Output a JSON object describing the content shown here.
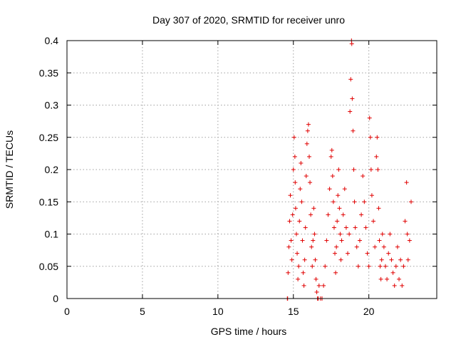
{
  "chart_data": {
    "type": "scatter",
    "title": "Day 307 of 2020, SRMTID for receiver unro",
    "xlabel": "GPS time / hours",
    "ylabel": "SRMTID / TECUs",
    "xlim": [
      0,
      24.5
    ],
    "ylim": [
      0,
      0.4
    ],
    "x_ticks": [
      0,
      5,
      10,
      15,
      20
    ],
    "x_tick_labels": [
      "0",
      "5",
      "10",
      "15",
      "20"
    ],
    "y_ticks": [
      0,
      0.05,
      0.1,
      0.15,
      0.2,
      0.25,
      0.3,
      0.35,
      0.4
    ],
    "y_tick_labels": [
      "0",
      "0.05",
      "0.1",
      "0.15",
      "0.2",
      "0.25",
      "0.3",
      "0.35",
      "0.4"
    ],
    "grid": true,
    "marker": "+",
    "color": "#e00000",
    "series": [
      {
        "name": "SRMTID",
        "points": [
          [
            14.6,
            0.0
          ],
          [
            14.62,
            0.0
          ],
          [
            14.65,
            0.04
          ],
          [
            14.7,
            0.08
          ],
          [
            14.75,
            0.12
          ],
          [
            14.8,
            0.16
          ],
          [
            14.85,
            0.09
          ],
          [
            14.9,
            0.06
          ],
          [
            14.95,
            0.13
          ],
          [
            15.0,
            0.2
          ],
          [
            15.05,
            0.25
          ],
          [
            15.1,
            0.22
          ],
          [
            15.12,
            0.18
          ],
          [
            15.15,
            0.14
          ],
          [
            15.2,
            0.1
          ],
          [
            15.25,
            0.07
          ],
          [
            15.3,
            0.03
          ],
          [
            15.35,
            0.05
          ],
          [
            15.4,
            0.12
          ],
          [
            15.45,
            0.17
          ],
          [
            15.5,
            0.21
          ],
          [
            15.55,
            0.15
          ],
          [
            15.6,
            0.09
          ],
          [
            15.65,
            0.04
          ],
          [
            15.7,
            0.02
          ],
          [
            15.75,
            0.06
          ],
          [
            15.8,
            0.11
          ],
          [
            15.85,
            0.19
          ],
          [
            15.9,
            0.24
          ],
          [
            15.95,
            0.26
          ],
          [
            16.0,
            0.27
          ],
          [
            16.05,
            0.22
          ],
          [
            16.1,
            0.18
          ],
          [
            16.15,
            0.13
          ],
          [
            16.2,
            0.08
          ],
          [
            16.25,
            0.05
          ],
          [
            16.3,
            0.09
          ],
          [
            16.35,
            0.14
          ],
          [
            16.4,
            0.1
          ],
          [
            16.45,
            0.06
          ],
          [
            16.5,
            0.03
          ],
          [
            16.55,
            0.01
          ],
          [
            16.6,
            0.0
          ],
          [
            16.65,
            0.0
          ],
          [
            16.7,
            0.02
          ],
          [
            16.8,
            0.0
          ],
          [
            16.9,
            0.0
          ],
          [
            17.0,
            0.02
          ],
          [
            17.1,
            0.05
          ],
          [
            17.2,
            0.09
          ],
          [
            17.3,
            0.13
          ],
          [
            17.4,
            0.17
          ],
          [
            17.5,
            0.22
          ],
          [
            17.55,
            0.23
          ],
          [
            17.6,
            0.19
          ],
          [
            17.65,
            0.15
          ],
          [
            17.7,
            0.11
          ],
          [
            17.75,
            0.07
          ],
          [
            17.8,
            0.04
          ],
          [
            17.85,
            0.08
          ],
          [
            17.9,
            0.12
          ],
          [
            17.95,
            0.16
          ],
          [
            18.0,
            0.2
          ],
          [
            18.05,
            0.14
          ],
          [
            18.1,
            0.1
          ],
          [
            18.15,
            0.06
          ],
          [
            18.2,
            0.09
          ],
          [
            18.3,
            0.13
          ],
          [
            18.4,
            0.17
          ],
          [
            18.5,
            0.11
          ],
          [
            18.6,
            0.07
          ],
          [
            18.7,
            0.1
          ],
          [
            18.75,
            0.29
          ],
          [
            18.8,
            0.34
          ],
          [
            18.85,
            0.4
          ],
          [
            18.87,
            0.395
          ],
          [
            18.9,
            0.31
          ],
          [
            18.95,
            0.26
          ],
          [
            19.0,
            0.2
          ],
          [
            19.05,
            0.15
          ],
          [
            19.1,
            0.11
          ],
          [
            19.2,
            0.08
          ],
          [
            19.3,
            0.05
          ],
          [
            19.4,
            0.09
          ],
          [
            19.5,
            0.13
          ],
          [
            19.6,
            0.19
          ],
          [
            19.7,
            0.15
          ],
          [
            19.8,
            0.11
          ],
          [
            19.9,
            0.07
          ],
          [
            20.0,
            0.05
          ],
          [
            20.05,
            0.28
          ],
          [
            20.1,
            0.25
          ],
          [
            20.15,
            0.2
          ],
          [
            20.2,
            0.16
          ],
          [
            20.3,
            0.12
          ],
          [
            20.4,
            0.08
          ],
          [
            20.5,
            0.22
          ],
          [
            20.55,
            0.25
          ],
          [
            20.6,
            0.2
          ],
          [
            20.65,
            0.14
          ],
          [
            20.7,
            0.09
          ],
          [
            20.75,
            0.05
          ],
          [
            20.8,
            0.03
          ],
          [
            20.85,
            0.06
          ],
          [
            20.9,
            0.1
          ],
          [
            21.0,
            0.08
          ],
          [
            21.1,
            0.05
          ],
          [
            21.2,
            0.03
          ],
          [
            21.3,
            0.07
          ],
          [
            21.4,
            0.1
          ],
          [
            21.5,
            0.06
          ],
          [
            21.6,
            0.04
          ],
          [
            21.7,
            0.02
          ],
          [
            21.8,
            0.05
          ],
          [
            21.9,
            0.08
          ],
          [
            22.0,
            0.03
          ],
          [
            22.1,
            0.06
          ],
          [
            22.2,
            0.02
          ],
          [
            22.3,
            0.05
          ],
          [
            22.4,
            0.12
          ],
          [
            22.5,
            0.18
          ],
          [
            22.55,
            0.1
          ],
          [
            22.6,
            0.06
          ],
          [
            22.7,
            0.09
          ],
          [
            22.8,
            0.15
          ]
        ]
      }
    ]
  }
}
